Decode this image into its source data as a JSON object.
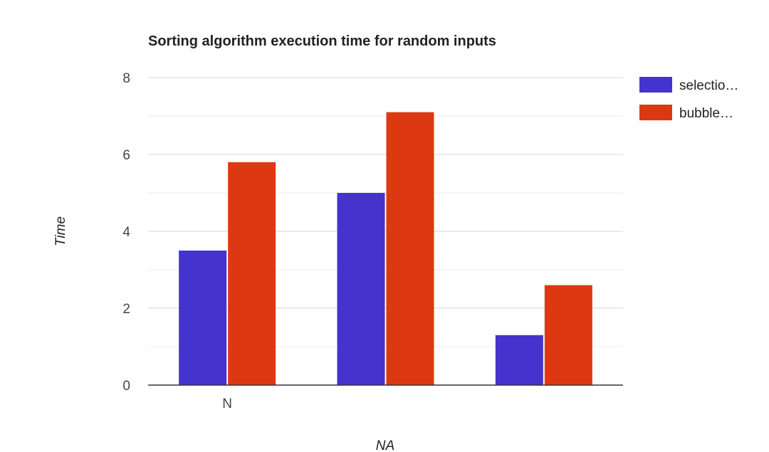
{
  "chart_data": {
    "type": "bar",
    "title": "Sorting algorithm execution time for random inputs",
    "xlabel": "NA",
    "ylabel": "Time",
    "categories": [
      "N",
      "",
      ""
    ],
    "series": [
      {
        "name": "selectio…",
        "values": [
          3.5,
          5.0,
          1.3
        ],
        "color": "#4433cc"
      },
      {
        "name": "bubble…",
        "values": [
          5.8,
          7.1,
          2.6
        ],
        "color": "#dc3912"
      }
    ],
    "ylim": [
      0,
      8
    ],
    "yticks": [
      "0",
      "2",
      "4",
      "6",
      "8"
    ],
    "grid": true,
    "legend": "right"
  }
}
